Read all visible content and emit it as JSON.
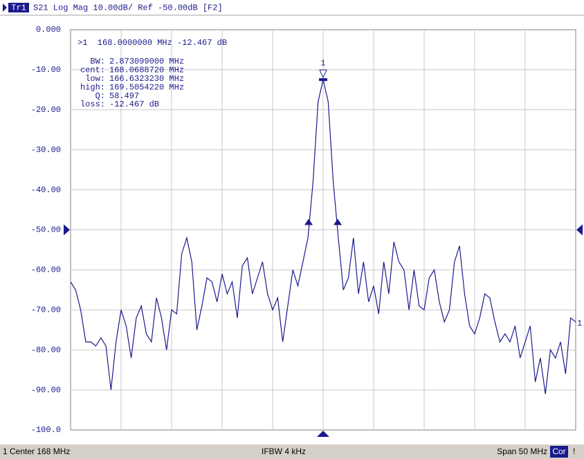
{
  "chart_data": {
    "type": "line",
    "header": {
      "trace": "Tr1",
      "text": "S21 Log Mag 10.00dB/ Ref -50.00dB [F2]"
    },
    "marker_readout": ">1  168.0000000 MHz -12.467 dB",
    "stats": [
      {
        "label": "BW:",
        "value": "2.873099000 MHz"
      },
      {
        "label": "cent:",
        "value": "168.0688720 MHz"
      },
      {
        "label": "low:",
        "value": "166.6323230 MHz"
      },
      {
        "label": "high:",
        "value": "169.5054220 MHz"
      },
      {
        "label": "Q:",
        "value": "58.497"
      },
      {
        "label": "loss:",
        "value": "-12.467 dB"
      }
    ],
    "marker_label": "1",
    "trace_end_label": "1",
    "color": "#1a1a8c",
    "values": [
      -63,
      -65,
      -70,
      -78,
      -78,
      -79,
      -77,
      -79,
      -90,
      -78,
      -70,
      -74,
      -82,
      -72,
      -69,
      -76,
      -78,
      -67,
      -72,
      -80,
      -70,
      -71,
      -56,
      -52,
      -58,
      -75,
      -69,
      -62,
      -63,
      -68,
      -61,
      -66,
      -63,
      -72,
      -59,
      -57,
      -66,
      -62,
      -58,
      -66,
      -70,
      -67,
      -78,
      -69,
      -60,
      -64,
      -58,
      -52,
      -38,
      -18,
      -12.467,
      -18,
      -38,
      -52,
      -65,
      -62,
      -52,
      -66,
      -58,
      -68,
      -64,
      -71,
      -58,
      -66,
      -53,
      -58,
      -60,
      -70,
      -60,
      -69,
      -70,
      -62,
      -60,
      -68,
      -73,
      -70,
      -58,
      -54,
      -66,
      -74,
      -76,
      -72,
      -66,
      -67,
      -73,
      -78,
      -76,
      -78,
      -74,
      -82,
      -78,
      -74,
      -88,
      -82,
      -91,
      -80,
      -82,
      -78,
      -86,
      -72,
      -73
    ],
    "ylim": [
      -100,
      0
    ],
    "yticks": [
      {
        "value": 0,
        "label": "0.000"
      },
      {
        "value": -10,
        "label": "-10.00"
      },
      {
        "value": -20,
        "label": "-20.00"
      },
      {
        "value": -30,
        "label": "-30.00"
      },
      {
        "value": -40,
        "label": "-40.00"
      },
      {
        "value": -50,
        "label": "-50.00"
      },
      {
        "value": -60,
        "label": "-60.00"
      },
      {
        "value": -70,
        "label": "-70.00"
      },
      {
        "value": -80,
        "label": "-80.00"
      },
      {
        "value": -90,
        "label": "-90.00"
      },
      {
        "value": -100,
        "label": "-100.0"
      }
    ],
    "grid": true,
    "status": [
      "1",
      "Center 168 MHz",
      "IFBW 4 kHz",
      "Span 50 MHz",
      "Cor",
      "!"
    ]
  }
}
